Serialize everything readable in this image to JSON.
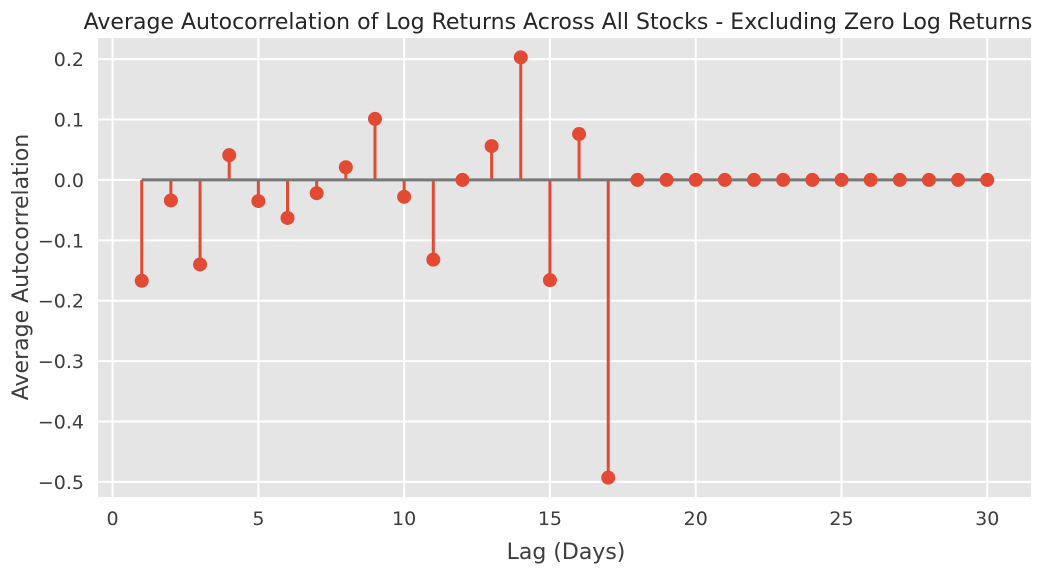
{
  "chart_data": {
    "type": "stem",
    "title": "Average Autocorrelation of Log Returns Across All Stocks - Excluding Zero Log Returns",
    "xlabel": "Lag (Days)",
    "ylabel": "Average Autocorrelation",
    "xlim": [
      -0.5,
      31.5
    ],
    "ylim": [
      -0.525,
      0.235
    ],
    "xticks": [
      0,
      5,
      10,
      15,
      20,
      25,
      30
    ],
    "yticks": [
      -0.5,
      -0.4,
      -0.3,
      -0.2,
      -0.1,
      0.0,
      0.1,
      0.2
    ],
    "xtick_labels": [
      "0",
      "5",
      "10",
      "15",
      "20",
      "25",
      "30"
    ],
    "ytick_labels": [
      "−0.5",
      "−0.4",
      "−0.3",
      "−0.2",
      "−0.1",
      "0.0",
      "0.1",
      "0.2"
    ],
    "grid": true,
    "baseline": 0,
    "colors": {
      "stem": "#e24a33",
      "baseline": "#777777",
      "plot_background": "#e5e5e5",
      "grid": "#ffffff"
    },
    "x": [
      1,
      2,
      3,
      4,
      5,
      6,
      7,
      8,
      9,
      10,
      11,
      12,
      13,
      14,
      15,
      16,
      17,
      18,
      19,
      20,
      21,
      22,
      23,
      24,
      25,
      26,
      27,
      28,
      29,
      30
    ],
    "values": [
      -0.167,
      -0.034,
      -0.14,
      0.041,
      -0.035,
      -0.063,
      -0.022,
      0.021,
      0.101,
      -0.028,
      -0.132,
      0.0,
      0.056,
      0.203,
      -0.166,
      0.076,
      -0.493,
      0,
      0,
      0,
      0,
      0,
      0,
      0,
      0,
      0,
      0,
      0,
      0,
      0
    ]
  }
}
